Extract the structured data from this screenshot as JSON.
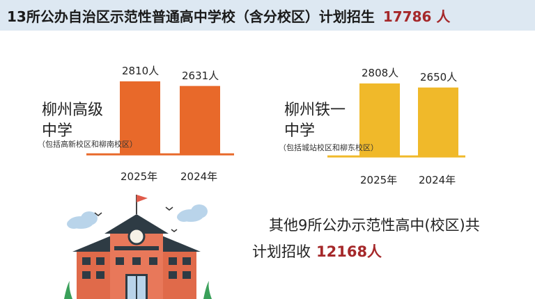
{
  "banner": {
    "text": "13所公办自治区示范性普通高中学校（含分校区）计划招生",
    "total": "17786 人"
  },
  "colors": {
    "banner_bg": "#dde8f2",
    "orange": "#e8692a",
    "yellow": "#f0b92a",
    "accent_red": "#a5282a"
  },
  "chart_data": [
    {
      "type": "bar",
      "categories": [
        "2025年",
        "2024年"
      ],
      "values": [
        2810,
        2631
      ],
      "value_labels": [
        "2810人",
        "2631人"
      ],
      "school": "柳州高级中学",
      "school_lines": [
        "柳州高级",
        "中学"
      ],
      "note": "（包括高新校区和柳南校区）",
      "color": "#e8692a",
      "ylim": [
        0,
        2810
      ]
    },
    {
      "type": "bar",
      "categories": [
        "2025年",
        "2024年"
      ],
      "values": [
        2808,
        2650
      ],
      "value_labels": [
        "2808人",
        "2650人"
      ],
      "school": "柳州铁一中学",
      "school_lines": [
        "柳州铁一",
        "中学"
      ],
      "note": "（包括城站校区和柳东校区）",
      "color": "#f0b92a",
      "ylim": [
        0,
        2808
      ]
    }
  ],
  "other": {
    "line1": "其他9所公办示范性高中(校区)共",
    "line2_prefix": "计划招收",
    "line2_num": "12168人"
  },
  "illustration": {
    "icon": "school-building-icon"
  }
}
